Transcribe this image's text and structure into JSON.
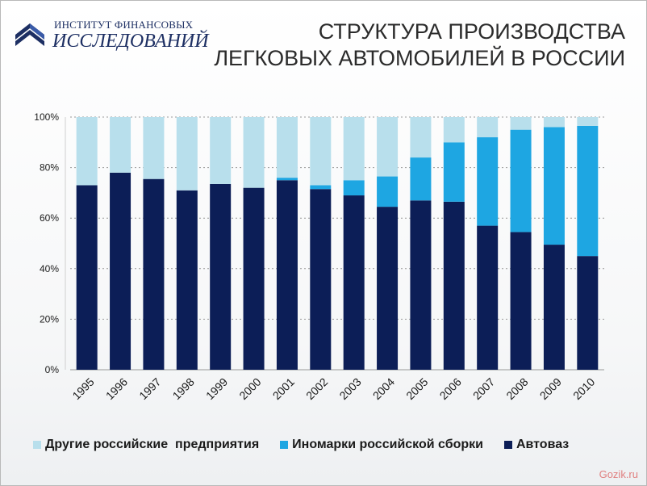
{
  "logo": {
    "line1": "ИНСТИТУТ ФИНАНСОВЫХ",
    "line2": "ИССЛЕДОВАНИЙ"
  },
  "title": {
    "line1": "СТРУКТУРА ПРОИЗВОДСТВА",
    "line2": "ЛЕГКОВЫХ АВТОМОБИЛЕЙ В РОССИИ"
  },
  "colors": {
    "avtovaz": "#0c1e57",
    "inomarki": "#1ea6e2",
    "drugie": "#b8dfec",
    "grid": "#9a9a9a",
    "text": "#1a1a1a"
  },
  "chart_data": {
    "type": "bar",
    "stacked": true,
    "categories": [
      "1995",
      "1996",
      "1997",
      "1998",
      "1999",
      "2000",
      "2001",
      "2002",
      "2003",
      "2004",
      "2005",
      "2006",
      "2007",
      "2008",
      "2009",
      "2010"
    ],
    "series": [
      {
        "name": "Автоваз",
        "values": [
          73,
          78,
          75.5,
          71,
          73.5,
          72,
          75,
          71.5,
          69,
          64.5,
          67,
          66.5,
          57,
          54.5,
          49.5,
          45
        ]
      },
      {
        "name": "Иномарки российской сборки",
        "values": [
          0,
          0,
          0,
          0,
          0,
          0,
          1,
          1.5,
          6,
          12,
          17,
          23.5,
          35,
          40.5,
          46.5,
          51.5
        ]
      },
      {
        "name": "Другие российские предприятия",
        "values": [
          27,
          22,
          24.5,
          29,
          26.5,
          28,
          24,
          27,
          25,
          23.5,
          16,
          10,
          8,
          5,
          4,
          3.5
        ]
      }
    ],
    "yticks": [
      "0%",
      "20%",
      "40%",
      "60%",
      "80%",
      "100%"
    ],
    "ylim": [
      0,
      100
    ],
    "grid": true,
    "legend": "bottom"
  },
  "legend": [
    {
      "label": "Другие российские  предприятия"
    },
    {
      "label": "Иномарки российской сборки"
    },
    {
      "label": "Автоваз"
    }
  ],
  "watermark": "Gozik.ru"
}
